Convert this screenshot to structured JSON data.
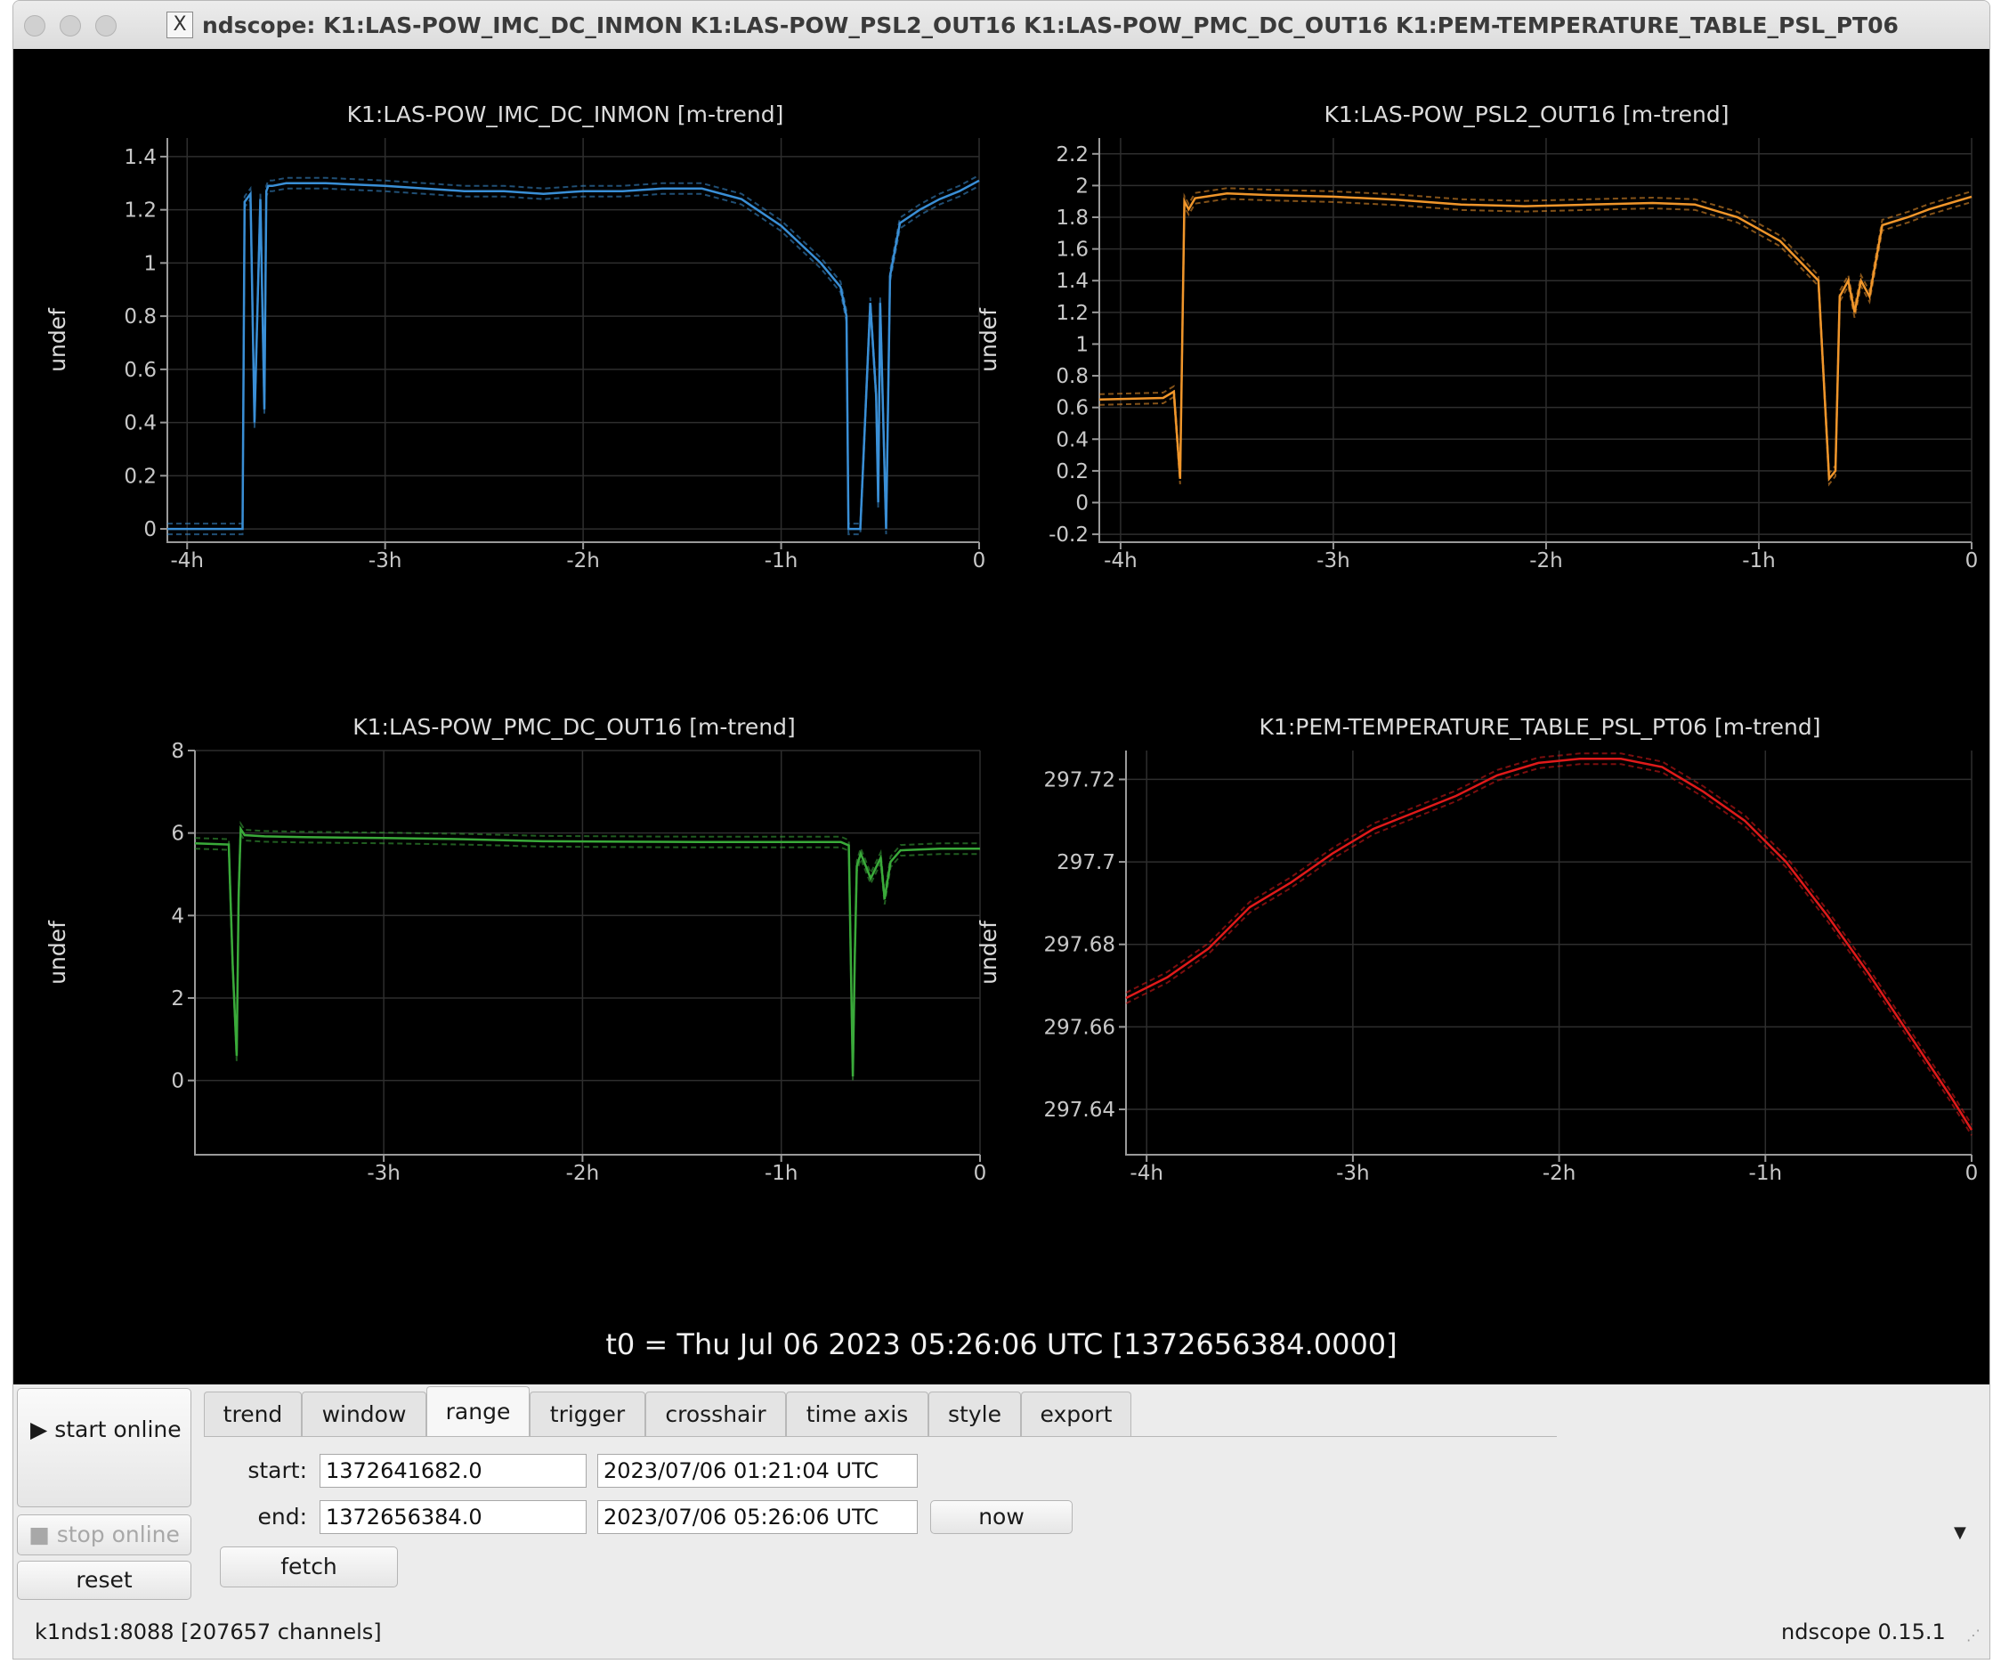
{
  "window": {
    "title": "ndscope: K1:LAS-POW_IMC_DC_INMON K1:LAS-POW_PSL2_OUT16 K1:LAS-POW_PMC_DC_OUT16 K1:PEM-TEMPERATURE_TABLE_PSL_PT06"
  },
  "ylabel": "undef",
  "t0_label": "t0 = Thu Jul 06 2023 05:26:06 UTC [1372656384.0000]",
  "chart_data": [
    {
      "type": "line",
      "title": "K1:LAS-POW_IMC_DC_INMON [m-trend]",
      "ylabel": "undef",
      "color": "#3a8fd6",
      "xlim": [
        -4.1,
        0
      ],
      "ylim": [
        -0.05,
        1.47
      ],
      "x_ticks": [
        -4,
        -3,
        -2,
        -1,
        0
      ],
      "x_tick_labels": [
        "-4h",
        "-3h",
        "-2h",
        "-1h",
        "0"
      ],
      "y_ticks": [
        0,
        0.2,
        0.4,
        0.6,
        0.8,
        1,
        1.2,
        1.4
      ],
      "y_tick_labels": [
        "0",
        "0.2",
        "0.4",
        "0.6",
        "0.8",
        "1",
        "1.2",
        "1.4"
      ],
      "x": [
        -4.1,
        -3.72,
        -3.71,
        -3.68,
        -3.66,
        -3.63,
        -3.61,
        -3.6,
        -3.59,
        -3.57,
        -3.5,
        -3.3,
        -3.0,
        -2.8,
        -2.6,
        -2.4,
        -2.2,
        -2.0,
        -1.8,
        -1.6,
        -1.4,
        -1.2,
        -1.0,
        -0.8,
        -0.7,
        -0.67,
        -0.66,
        -0.6,
        -0.55,
        -0.52,
        -0.51,
        -0.5,
        -0.47,
        -0.45,
        -0.4,
        -0.3,
        -0.2,
        -0.1,
        0
      ],
      "y": [
        0,
        0,
        1.23,
        1.26,
        0.4,
        1.24,
        0.45,
        1.27,
        1.29,
        1.29,
        1.3,
        1.3,
        1.29,
        1.28,
        1.27,
        1.27,
        1.26,
        1.27,
        1.27,
        1.28,
        1.28,
        1.24,
        1.14,
        1.0,
        0.91,
        0.8,
        0,
        0,
        0.85,
        0.5,
        0.1,
        0.85,
        0,
        0.95,
        1.15,
        1.2,
        1.24,
        1.27,
        1.31
      ]
    },
    {
      "type": "line",
      "title": "K1:LAS-POW_PSL2_OUT16 [m-trend]",
      "ylabel": "undef",
      "color": "#f0962b",
      "xlim": [
        -4.1,
        0
      ],
      "ylim": [
        -0.25,
        2.3
      ],
      "x_ticks": [
        -4,
        -3,
        -2,
        -1,
        0
      ],
      "x_tick_labels": [
        "-4h",
        "-3h",
        "-2h",
        "-1h",
        "0"
      ],
      "y_ticks": [
        -0.2,
        0,
        0.2,
        0.4,
        0.6,
        0.8,
        1,
        1.2,
        1.4,
        1.6,
        1.8,
        2,
        2.2
      ],
      "y_tick_labels": [
        "-0.2",
        "0",
        "0.2",
        "0.4",
        "0.6",
        "0.8",
        "1",
        "1.2",
        "1.4",
        "1.6",
        "1.8",
        "2",
        "2.2"
      ],
      "x": [
        -4.1,
        -3.8,
        -3.75,
        -3.72,
        -3.7,
        -3.68,
        -3.65,
        -3.6,
        -3.5,
        -3.3,
        -3.0,
        -2.7,
        -2.4,
        -2.1,
        -1.8,
        -1.5,
        -1.3,
        -1.1,
        -0.9,
        -0.72,
        -0.7,
        -0.67,
        -0.64,
        -0.62,
        -0.58,
        -0.55,
        -0.52,
        -0.48,
        -0.42,
        -0.3,
        -0.2,
        -0.1,
        0
      ],
      "y": [
        0.65,
        0.66,
        0.7,
        0.15,
        1.9,
        1.85,
        1.92,
        1.93,
        1.95,
        1.94,
        1.93,
        1.91,
        1.88,
        1.87,
        1.88,
        1.89,
        1.88,
        1.8,
        1.65,
        1.4,
        0.9,
        0.15,
        0.2,
        1.3,
        1.4,
        1.2,
        1.4,
        1.3,
        1.75,
        1.8,
        1.85,
        1.89,
        1.93
      ]
    },
    {
      "type": "line",
      "title": "K1:LAS-POW_PMC_DC_OUT16 [m-trend]",
      "ylabel": "undef",
      "color": "#3aaa3a",
      "xlim": [
        -3.95,
        0
      ],
      "ylim": [
        -1.8,
        8
      ],
      "x_ticks": [
        -3,
        -2,
        -1,
        0
      ],
      "x_tick_labels": [
        "-3h",
        "-2h",
        "-1h",
        "0"
      ],
      "y_ticks": [
        0,
        2,
        4,
        6,
        8
      ],
      "y_tick_labels": [
        "0",
        "2",
        "4",
        "6",
        "8"
      ],
      "x": [
        -3.95,
        -3.78,
        -3.76,
        -3.74,
        -3.73,
        -3.72,
        -3.7,
        -3.6,
        -3.4,
        -3.0,
        -2.6,
        -2.2,
        -1.8,
        -1.4,
        -1.0,
        -0.7,
        -0.66,
        -0.64,
        -0.63,
        -0.62,
        -0.6,
        -0.55,
        -0.5,
        -0.48,
        -0.45,
        -0.4,
        -0.2,
        0
      ],
      "y": [
        5.75,
        5.72,
        2.8,
        0.6,
        4.5,
        6.1,
        5.95,
        5.92,
        5.9,
        5.88,
        5.85,
        5.8,
        5.79,
        5.78,
        5.78,
        5.78,
        5.7,
        0.1,
        3.0,
        5.2,
        5.5,
        4.9,
        5.4,
        4.4,
        5.3,
        5.58,
        5.62,
        5.62
      ]
    },
    {
      "type": "line",
      "title": "K1:PEM-TEMPERATURE_TABLE_PSL_PT06 [m-trend]",
      "ylabel": "undef",
      "color": "#e01a1a",
      "xlim": [
        -4.1,
        0
      ],
      "ylim": [
        297.629,
        297.727
      ],
      "x_ticks": [
        -4,
        -3,
        -2,
        -1,
        0
      ],
      "x_tick_labels": [
        "-4h",
        "-3h",
        "-2h",
        "-1h",
        "0"
      ],
      "y_ticks": [
        297.64,
        297.66,
        297.68,
        297.7,
        297.72
      ],
      "y_tick_labels": [
        "297.64",
        "297.66",
        "297.68",
        "297.7",
        "297.72"
      ],
      "x": [
        -4.1,
        -3.9,
        -3.7,
        -3.5,
        -3.3,
        -3.1,
        -2.9,
        -2.7,
        -2.5,
        -2.3,
        -2.1,
        -1.9,
        -1.7,
        -1.5,
        -1.3,
        -1.1,
        -0.9,
        -0.7,
        -0.5,
        -0.3,
        -0.1,
        0
      ],
      "y": [
        297.667,
        297.672,
        297.679,
        297.689,
        297.695,
        297.702,
        297.708,
        297.712,
        297.716,
        297.721,
        297.724,
        297.725,
        297.725,
        297.723,
        297.717,
        297.71,
        297.7,
        297.687,
        297.673,
        297.658,
        297.643,
        297.635
      ]
    }
  ],
  "controls": {
    "start_online": "start online",
    "stop_online": "stop online",
    "reset": "reset",
    "tabs": [
      "trend",
      "window",
      "range",
      "trigger",
      "crosshair",
      "time axis",
      "style",
      "export"
    ],
    "active_tab": "range",
    "start_label": "start:",
    "end_label": "end:",
    "start_gps": "1372641682.0",
    "start_utc": "2023/07/06 01:21:04 UTC",
    "end_gps": "1372656384.0",
    "end_utc": "2023/07/06 05:26:06 UTC",
    "now": "now",
    "fetch": "fetch"
  },
  "status": {
    "server": "k1nds1:8088  [207657 channels]",
    "version": "ndscope 0.15.1"
  }
}
